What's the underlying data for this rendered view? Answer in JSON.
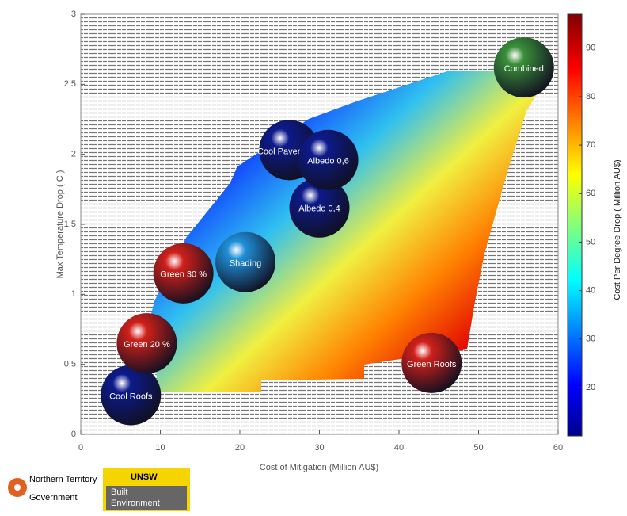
{
  "chart_data": {
    "type": "scatter",
    "x_label": "Cost of Mitigation (Million AU$)",
    "y_label": "Max Temperature Drop ( C )",
    "colorbar_label": "Cost Per Degree Drop ( Million AU$)",
    "xlim": [
      0,
      60
    ],
    "xticks": [
      0,
      10,
      20,
      30,
      40,
      50,
      60
    ],
    "ylim": [
      0,
      3
    ],
    "yticks": [
      0,
      0.5,
      1,
      1.5,
      2,
      2.5,
      3
    ],
    "clim": [
      10,
      97
    ],
    "cticks": [
      20,
      30,
      40,
      50,
      60,
      70,
      80,
      90
    ],
    "points": [
      {
        "label": "Cool Roofs",
        "x": 6.3,
        "y": 0.28,
        "color": "#0d1a8c"
      },
      {
        "label": "Green 20 %",
        "x": 8.3,
        "y": 0.65,
        "color": "#d0201a"
      },
      {
        "label": "Green 30 %",
        "x": 12.9,
        "y": 1.15,
        "color": "#d0201a"
      },
      {
        "label": "Shading",
        "x": 20.7,
        "y": 1.23,
        "color": "#1f8fd8"
      },
      {
        "label": "Cool Pavements",
        "x": 26.2,
        "y": 2.03,
        "color": "#0d1a8c"
      },
      {
        "label": "Albedo 0,4",
        "x": 30,
        "y": 1.62,
        "color": "#0d1a8c"
      },
      {
        "label": "Albedo 0,6",
        "x": 31.1,
        "y": 1.96,
        "color": "#0d1a8c"
      },
      {
        "label": "Green Roofs",
        "x": 44.1,
        "y": 0.51,
        "color": "#d0201a"
      },
      {
        "label": "Combined",
        "x": 55.7,
        "y": 2.62,
        "color": "#3a8f3a"
      }
    ]
  },
  "logos": {
    "nt": [
      "Northern Territory",
      "Government"
    ],
    "unsw": [
      "UNSW",
      "Built",
      "Environment"
    ]
  }
}
